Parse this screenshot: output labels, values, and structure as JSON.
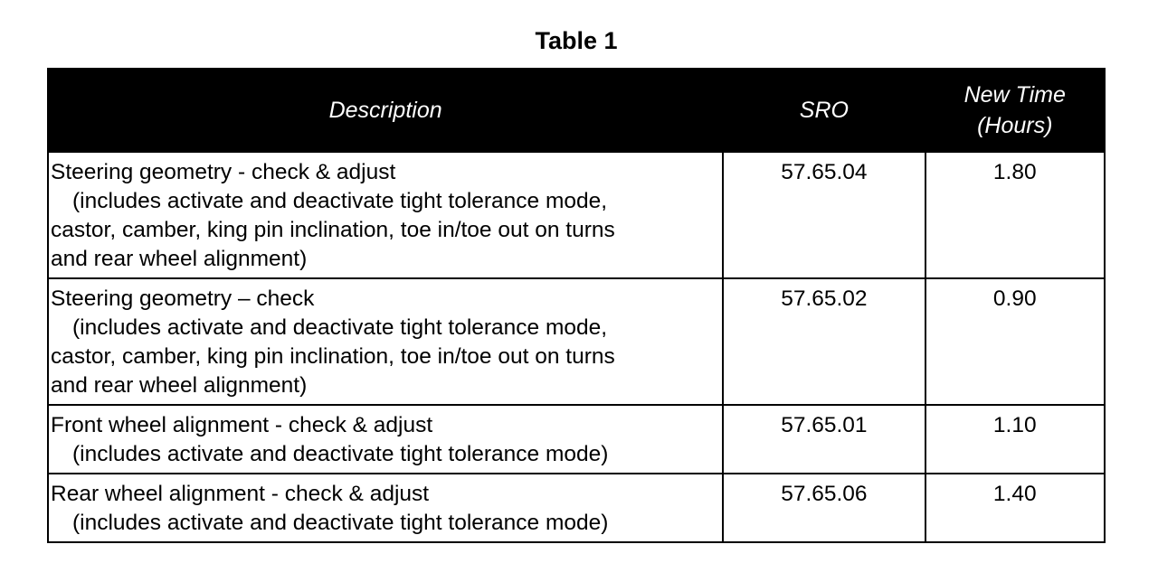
{
  "title": "Table 1",
  "columns": [
    "Description",
    "SRO",
    "New Time (Hours)"
  ],
  "column_lines": {
    "time": [
      "New Time",
      "(Hours)"
    ]
  },
  "rows": [
    {
      "lines": [
        "Steering geometry - check & adjust",
        "(includes activate and deactivate tight tolerance mode,",
        "castor, camber, king pin inclination, toe in/toe out on turns",
        "and rear wheel alignment)"
      ],
      "sro": "57.65.04",
      "time": "1.80"
    },
    {
      "lines": [
        "Steering geometry – check",
        "(includes activate and deactivate tight tolerance mode,",
        "castor, camber, king pin inclination, toe in/toe out on turns",
        "and rear wheel alignment)"
      ],
      "sro": "57.65.02",
      "time": "0.90"
    },
    {
      "lines": [
        "Front wheel alignment - check & adjust",
        "(includes activate and deactivate tight tolerance mode)"
      ],
      "sro": "57.65.01",
      "time": "1.10"
    },
    {
      "lines": [
        "Rear wheel alignment - check & adjust",
        "(includes activate and deactivate tight tolerance mode)"
      ],
      "sro": "57.65.06",
      "time": "1.40"
    }
  ]
}
